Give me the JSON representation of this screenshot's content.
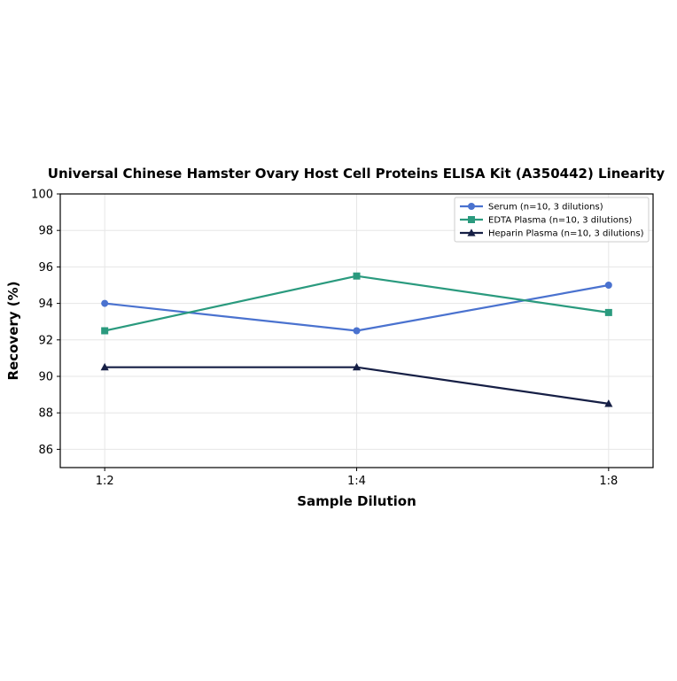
{
  "chart_data": {
    "type": "line",
    "title": "Universal Chinese Hamster Ovary Host Cell Proteins ELISA Kit (A350442) Linearity",
    "xlabel": "Sample Dilution",
    "ylabel": "Recovery (%)",
    "categories": [
      "1:2",
      "1:4",
      "1:8"
    ],
    "ylim": [
      85,
      100
    ],
    "yticks": [
      86,
      88,
      90,
      92,
      94,
      96,
      98,
      100
    ],
    "grid": true,
    "legend_position": "top-right",
    "series": [
      {
        "name": "Serum (n=10, 3 dilutions)",
        "values": [
          94.0,
          92.5,
          95.0
        ],
        "color": "#4a72cf",
        "marker": "circle"
      },
      {
        "name": "EDTA Plasma (n=10, 3 dilutions)",
        "values": [
          92.5,
          95.5,
          93.5
        ],
        "color": "#2a9a7e",
        "marker": "square"
      },
      {
        "name": "Heparin Plasma (n=10, 3 dilutions)",
        "values": [
          90.5,
          90.5,
          88.5
        ],
        "color": "#161f45",
        "marker": "triangle"
      }
    ]
  }
}
